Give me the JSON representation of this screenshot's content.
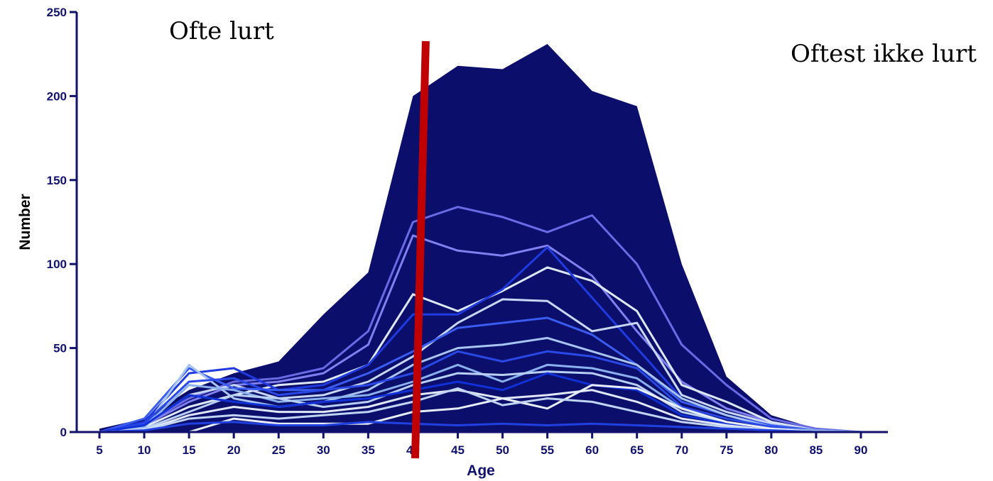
{
  "chart_data": {
    "type": "area",
    "xlabel": "Age",
    "ylabel": "Number",
    "ylim": [
      0,
      250
    ],
    "y_ticks": [
      0,
      50,
      100,
      150,
      200,
      250
    ],
    "x": [
      5,
      10,
      15,
      20,
      25,
      30,
      35,
      40,
      45,
      50,
      55,
      60,
      65,
      70,
      75,
      80,
      85,
      90
    ],
    "grid": false,
    "legend": "none",
    "annotations": [
      {
        "text": "Ofte lurt",
        "position": "top-left"
      },
      {
        "text": "Oftest ikke lurt",
        "position": "top-right"
      }
    ],
    "marker_line": {
      "x": 40,
      "color": "#c00000"
    },
    "colors": {
      "area_fill": "#0b0f6b",
      "axis": "#10126e",
      "marker": "#c00000"
    },
    "series": [
      {
        "kind": "area",
        "color": "#0b0f6b",
        "values": [
          2,
          8,
          25,
          35,
          42,
          70,
          95,
          200,
          218,
          216,
          231,
          203,
          194,
          100,
          33,
          10,
          2,
          0
        ]
      },
      {
        "kind": "line",
        "color": "#6a6ae6",
        "values": [
          0,
          5,
          20,
          30,
          32,
          38,
          60,
          125,
          134,
          128,
          119,
          129,
          100,
          52,
          28,
          8,
          2,
          0
        ]
      },
      {
        "kind": "line",
        "color": "#8080f0",
        "values": [
          0,
          4,
          18,
          28,
          30,
          35,
          52,
          117,
          108,
          105,
          111,
          93,
          60,
          30,
          14,
          6,
          1,
          0
        ]
      },
      {
        "kind": "line",
        "color": "#dde8f5",
        "values": [
          0,
          3,
          15,
          22,
          28,
          30,
          40,
          82,
          72,
          84,
          98,
          90,
          72,
          28,
          18,
          6,
          1,
          0
        ]
      },
      {
        "kind": "line",
        "color": "#1f3ae0",
        "values": [
          0,
          6,
          35,
          38,
          25,
          28,
          40,
          70,
          70,
          85,
          110,
          80,
          50,
          20,
          10,
          4,
          1,
          0
        ]
      },
      {
        "kind": "line",
        "color": "#c8d8f4",
        "values": [
          0,
          4,
          22,
          28,
          20,
          22,
          30,
          45,
          65,
          79,
          78,
          60,
          65,
          22,
          12,
          5,
          1,
          0
        ]
      },
      {
        "kind": "line",
        "color": "#3a5cf0",
        "values": [
          0,
          8,
          38,
          26,
          25,
          25,
          35,
          48,
          62,
          65,
          68,
          58,
          40,
          18,
          10,
          4,
          1,
          0
        ]
      },
      {
        "kind": "line",
        "color": "#a8c4f0",
        "values": [
          0,
          2,
          40,
          20,
          15,
          18,
          25,
          40,
          50,
          52,
          56,
          48,
          40,
          20,
          10,
          3,
          1,
          0
        ]
      },
      {
        "kind": "line",
        "color": "#2a48e6",
        "values": [
          0,
          5,
          30,
          32,
          22,
          25,
          28,
          35,
          48,
          42,
          48,
          45,
          38,
          15,
          8,
          3,
          1,
          0
        ]
      },
      {
        "kind": "line",
        "color": "#8ab0ee",
        "values": [
          0,
          3,
          28,
          25,
          18,
          20,
          22,
          30,
          40,
          30,
          40,
          38,
          32,
          14,
          6,
          2,
          1,
          0
        ]
      },
      {
        "kind": "line",
        "color": "#b8d0f4",
        "values": [
          0,
          2,
          12,
          22,
          20,
          15,
          18,
          28,
          35,
          34,
          36,
          35,
          28,
          12,
          6,
          2,
          0,
          0
        ]
      },
      {
        "kind": "line",
        "color": "#1030d8",
        "values": [
          0,
          4,
          22,
          18,
          15,
          18,
          20,
          25,
          30,
          25,
          35,
          28,
          25,
          10,
          5,
          2,
          0,
          0
        ]
      },
      {
        "kind": "line",
        "color": "#e0e8f8",
        "values": [
          0,
          1,
          10,
          15,
          12,
          12,
          15,
          22,
          25,
          20,
          22,
          25,
          18,
          8,
          4,
          1,
          0,
          0
        ]
      },
      {
        "kind": "line",
        "color": "#e8eef8",
        "values": [
          0,
          0,
          0,
          8,
          5,
          5,
          5,
          12,
          14,
          20,
          14,
          28,
          26,
          14,
          6,
          2,
          0,
          0
        ]
      },
      {
        "kind": "line",
        "color": "#c0d4f4",
        "values": [
          0,
          1,
          8,
          10,
          8,
          10,
          12,
          18,
          26,
          16,
          20,
          18,
          12,
          6,
          3,
          1,
          0,
          0
        ]
      },
      {
        "kind": "line",
        "color": "#2040e0",
        "values": [
          0,
          1,
          5,
          6,
          4,
          4,
          6,
          5,
          4,
          5,
          4,
          5,
          4,
          3,
          2,
          1,
          0,
          0
        ]
      }
    ]
  }
}
